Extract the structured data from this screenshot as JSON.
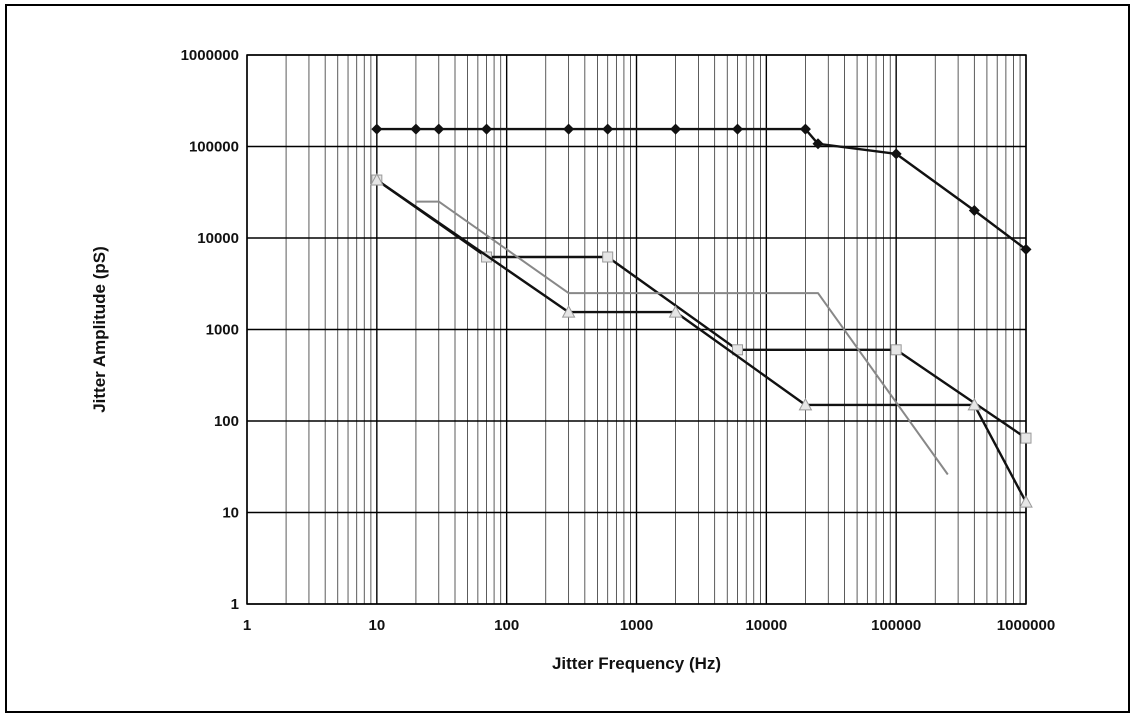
{
  "chart_data": {
    "type": "line",
    "x_scale": "log",
    "y_scale": "log",
    "xlabel": "Jitter Frequency (Hz)",
    "ylabel": "Jitter Amplitude  (pS)",
    "xlim": [
      1,
      1000000
    ],
    "ylim": [
      1,
      1000000
    ],
    "x_ticks": [
      "1",
      "10",
      "100",
      "1000",
      "10000",
      "100000",
      "1000000"
    ],
    "y_ticks": [
      "1",
      "10",
      "100",
      "1000",
      "10000",
      "100000",
      "1000000"
    ],
    "grid": true,
    "series": [
      {
        "color": "#111111",
        "marker": "diamond",
        "points": [
          [
            10,
            155000
          ],
          [
            20,
            155000
          ],
          [
            30,
            155000
          ],
          [
            70,
            155000
          ],
          [
            300,
            155000
          ],
          [
            600,
            155000
          ],
          [
            2000,
            155000
          ],
          [
            6000,
            155000
          ],
          [
            20000,
            155000
          ],
          [
            25000,
            107000
          ],
          [
            100000,
            83000
          ],
          [
            400000,
            20000
          ],
          [
            1000000,
            7500
          ]
        ]
      },
      {
        "color": "#111111",
        "marker": "square",
        "points": [
          [
            10,
            43000
          ],
          [
            70,
            6200
          ],
          [
            600,
            6200
          ],
          [
            6000,
            600
          ],
          [
            100000,
            600
          ],
          [
            1000000,
            65
          ]
        ]
      },
      {
        "color": "#111111",
        "marker": "triangle",
        "points": [
          [
            10,
            43000
          ],
          [
            300,
            1550
          ],
          [
            2000,
            1550
          ],
          [
            20000,
            150
          ],
          [
            400000,
            150
          ],
          [
            1000000,
            13
          ]
        ]
      },
      {
        "color": "#888888",
        "marker": "none",
        "points": [
          [
            20,
            25000
          ],
          [
            30,
            25000
          ],
          [
            300,
            2500
          ],
          [
            25000,
            2500
          ],
          [
            250000,
            26
          ]
        ]
      }
    ]
  }
}
